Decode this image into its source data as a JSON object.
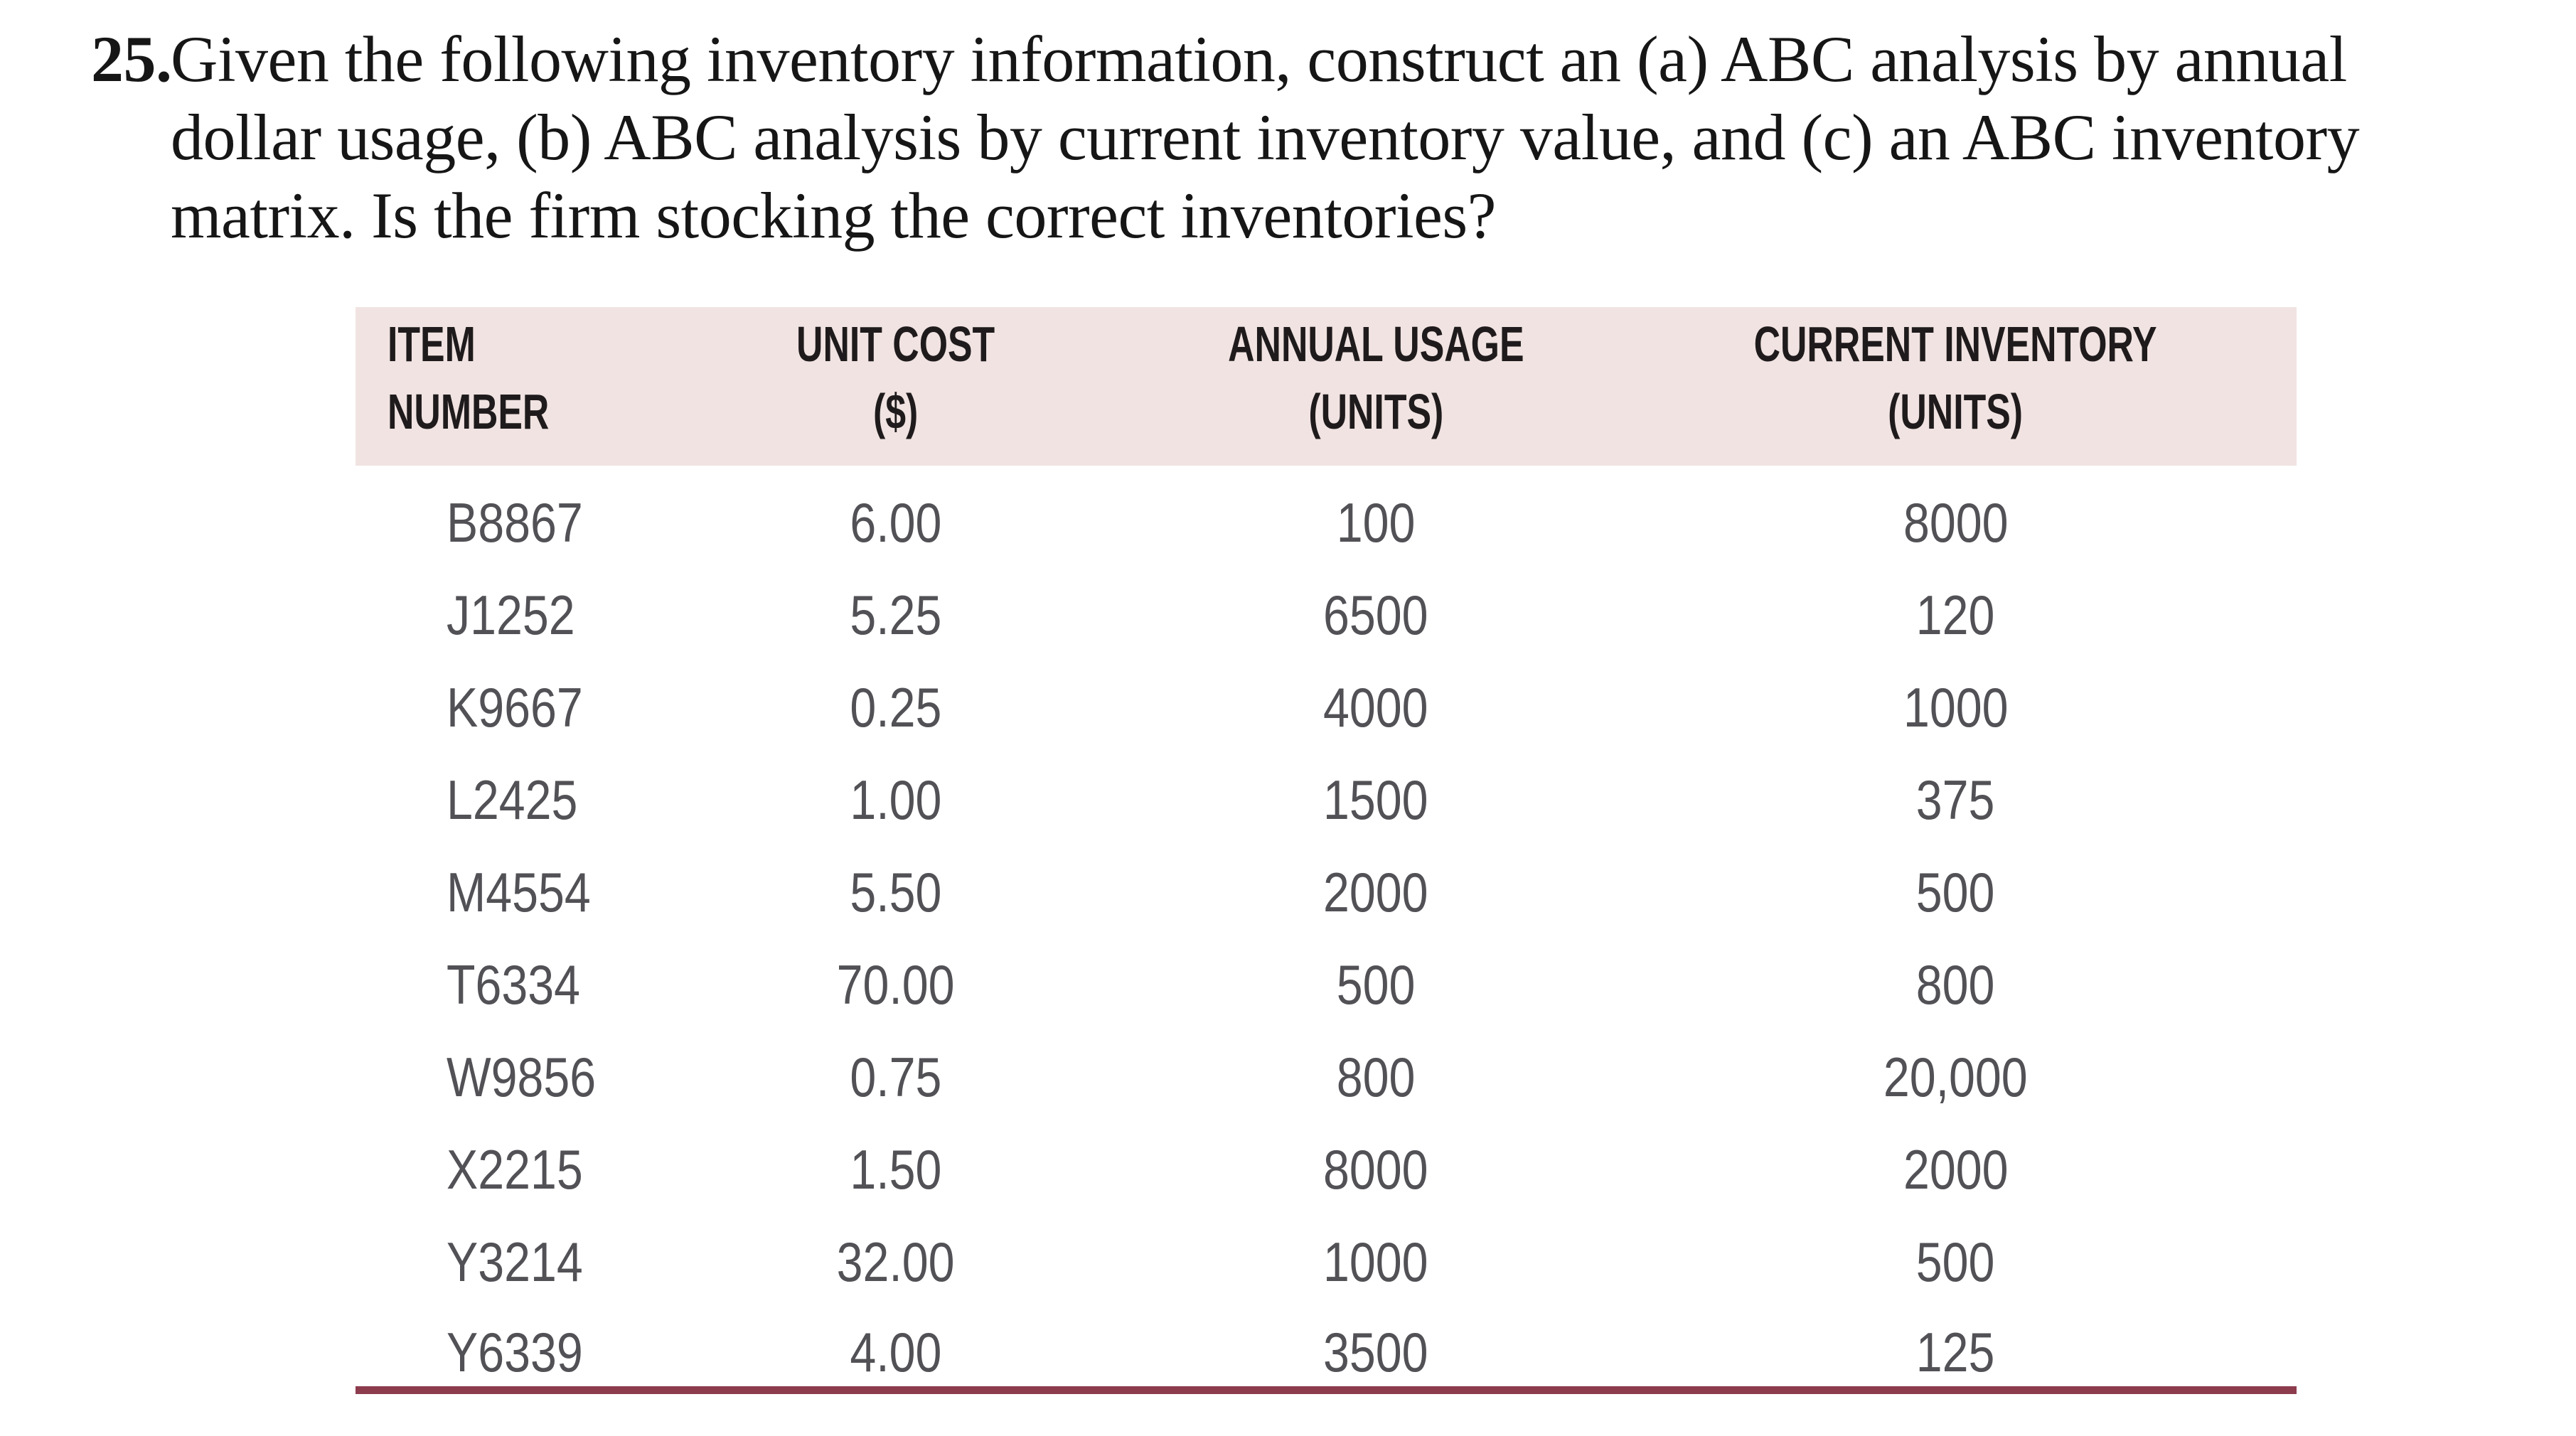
{
  "problem": {
    "number": "25.",
    "lines": [
      "Given the following inventory information, construct an (a) ABC analysis by annual",
      "dollar usage, (b) ABC analysis by current inventory value, and (c) an ABC inventory",
      "matrix. Is the firm stocking the correct inventories?"
    ]
  },
  "table": {
    "columns": [
      {
        "id": "item_number",
        "label": "ITEM NUMBER"
      },
      {
        "id": "unit_cost",
        "label": "UNIT COST\n($)"
      },
      {
        "id": "annual_usage",
        "label": "ANNUAL USAGE\n(UNITS)"
      },
      {
        "id": "current_inventory",
        "label": "CURRENT INVENTORY\n(UNITS)"
      }
    ],
    "rows": [
      {
        "item": "B8867",
        "unit_cost": "6.00",
        "annual_usage": "100",
        "current_inventory": "8000"
      },
      {
        "item": "J1252",
        "unit_cost": "5.25",
        "annual_usage": "6500",
        "current_inventory": "120"
      },
      {
        "item": "K9667",
        "unit_cost": "0.25",
        "annual_usage": "4000",
        "current_inventory": "1000"
      },
      {
        "item": "L2425",
        "unit_cost": "1.00",
        "annual_usage": "1500",
        "current_inventory": "375"
      },
      {
        "item": "M4554",
        "unit_cost": "5.50",
        "annual_usage": "2000",
        "current_inventory": "500"
      },
      {
        "item": "T6334",
        "unit_cost": "70.00",
        "annual_usage": "500",
        "current_inventory": "800"
      },
      {
        "item": "W9856",
        "unit_cost": "0.75",
        "annual_usage": "800",
        "current_inventory": "20,000"
      },
      {
        "item": "X2215",
        "unit_cost": "1.50",
        "annual_usage": "8000",
        "current_inventory": "2000"
      },
      {
        "item": "Y3214",
        "unit_cost": "32.00",
        "annual_usage": "1000",
        "current_inventory": "500"
      },
      {
        "item": "Y6339",
        "unit_cost": "4.00",
        "annual_usage": "3500",
        "current_inventory": "125"
      }
    ]
  },
  "colors": {
    "header_band": "#f0e3e1",
    "rule": "#8d3c4e",
    "header_text": "#1f1b1c",
    "data_text": "#515156",
    "question_text": "#161616"
  }
}
